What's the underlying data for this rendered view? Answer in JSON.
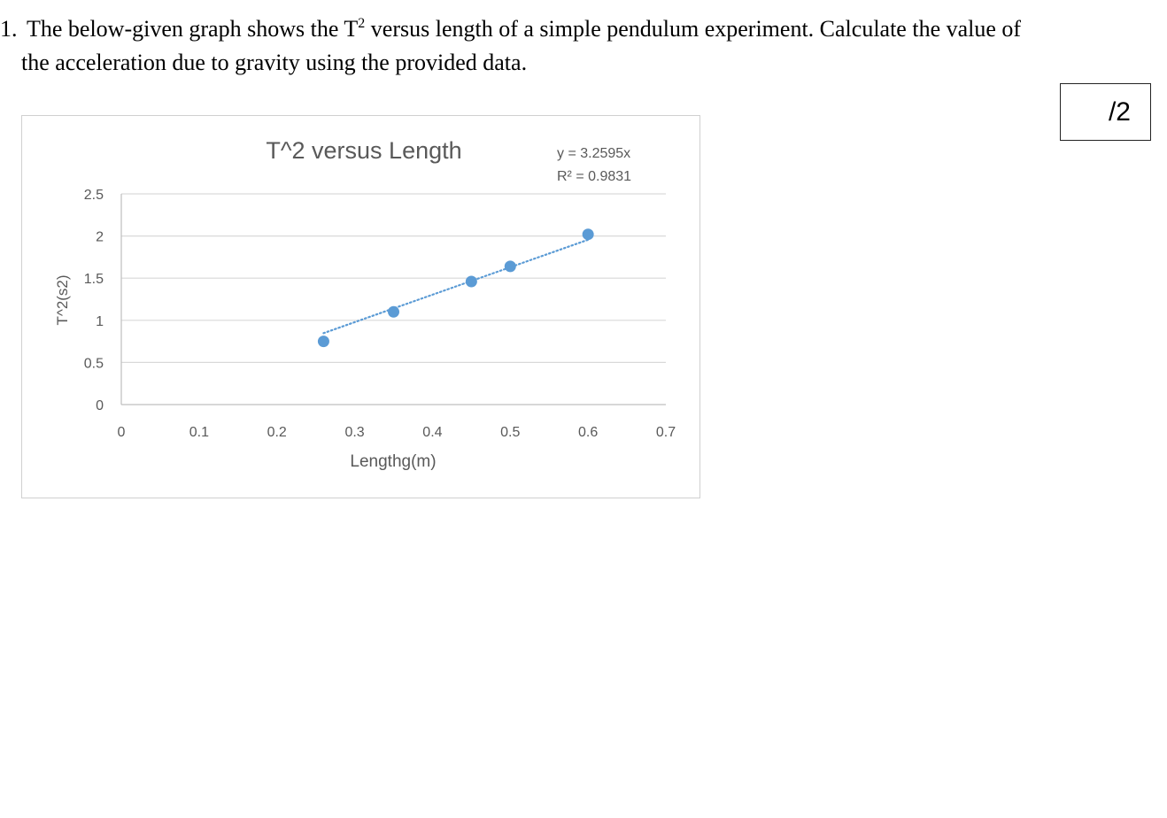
{
  "question": {
    "number": "1.",
    "text_before_sup": "The below-given graph shows the T",
    "sup": "2",
    "text_after_sup": " versus length of a simple pendulum experiment. Calculate the value of",
    "line2": "the acceleration due to gravity using the provided data."
  },
  "marks": "/2",
  "chart_data": {
    "type": "scatter",
    "title": "T^2 versus Length",
    "xlabel": "Lengthg(m)",
    "ylabel": "T^2(s2)",
    "xlim": [
      0,
      0.7
    ],
    "ylim": [
      0,
      2.5
    ],
    "x_ticks": [
      "0",
      "0.1",
      "0.2",
      "0.3",
      "0.4",
      "0.5",
      "0.6",
      "0.7"
    ],
    "y_ticks": [
      "0",
      "0.5",
      "1",
      "1.5",
      "2",
      "2.5"
    ],
    "grid": "horizontal",
    "series": [
      {
        "points": [
          {
            "x": 0.26,
            "y": 0.75
          },
          {
            "x": 0.35,
            "y": 1.1
          },
          {
            "x": 0.45,
            "y": 1.46
          },
          {
            "x": 0.5,
            "y": 1.64
          },
          {
            "x": 0.6,
            "y": 2.02
          }
        ],
        "color": "#5b9bd5"
      }
    ],
    "trendline": {
      "equation": "y = 3.2595x",
      "r_squared": "R² = 0.9831",
      "slope": 3.2595,
      "x_range": [
        0.26,
        0.6
      ],
      "style": "dotted",
      "color": "#5b9bd5"
    }
  }
}
